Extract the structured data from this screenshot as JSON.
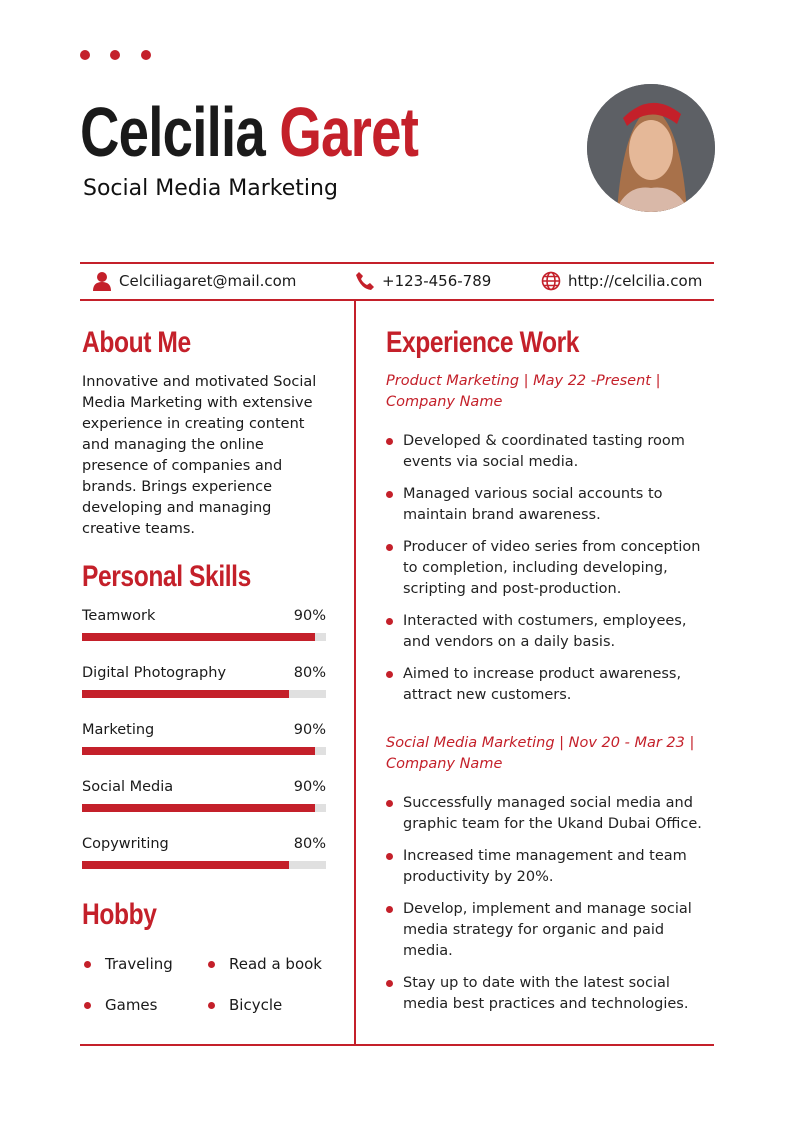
{
  "header": {
    "first_name": "Celcilia",
    "last_name": "Garet",
    "title": "Social Media Marketing"
  },
  "contact": {
    "email": "Celciliagaret@mail.com",
    "phone": "+123-456-789",
    "website": "http://celcilia.com"
  },
  "about": {
    "heading": "About Me",
    "text": "Innovative and motivated Social Media Marketing with extensive experience in creating content and managing the online presence of companies and brands. Brings experience developing and managing creative teams."
  },
  "skills": {
    "heading": "Personal Skills",
    "items": [
      {
        "name": "Teamwork",
        "label": "90%",
        "value": 90
      },
      {
        "name": "Digital Photography",
        "label": "80%",
        "value": 80
      },
      {
        "name": "Marketing",
        "label": "90%",
        "value": 90
      },
      {
        "name": "Social Media",
        "label": "90%",
        "value": 90
      },
      {
        "name": "Copywriting",
        "label": "80%",
        "value": 80
      }
    ]
  },
  "hobby": {
    "heading": "Hobby",
    "items": [
      "Traveling",
      "Read a book",
      "Games",
      "Bicycle"
    ]
  },
  "experience": {
    "heading": "Experience Work",
    "jobs": [
      {
        "title": "Product Marketing | May 22 -Present | Company Name",
        "bullets": [
          "Developed & coordinated tasting room events via social media.",
          "Managed various social accounts to maintain brand awareness.",
          "Producer of video series from conception to completion, including developing, scripting and post-production.",
          "Interacted with costumers, employees, and vendors on a daily basis.",
          "Aimed to increase product awareness, attract new customers."
        ]
      },
      {
        "title": "Social Media Marketing | Nov 20 - Mar 23 | Company Name",
        "bullets": [
          "Successfully managed social media and graphic team for the Ukand Dubai Office.",
          "Increased time management and team productivity by 20%.",
          "Develop, implement and manage social media strategy for organic and paid media.",
          "Stay up to date with the latest social media best practices and technologies."
        ]
      }
    ]
  },
  "colors": {
    "accent": "#c4202a"
  }
}
